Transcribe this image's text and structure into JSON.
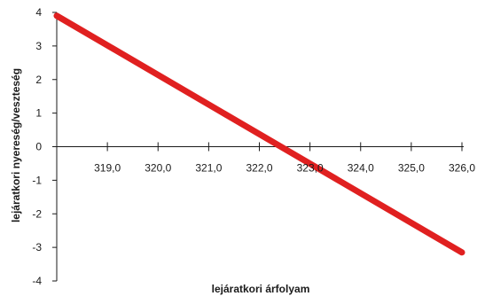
{
  "chart_data": {
    "type": "line",
    "title": "",
    "xlabel": "lejáratkori árfolyam",
    "ylabel": "lejáratkori nyereség/veszteség",
    "xlim": [
      318.0,
      326.0
    ],
    "ylim": [
      -4,
      4
    ],
    "x_ticks": [
      319,
      320,
      321,
      322,
      323,
      324,
      325,
      326
    ],
    "x_tick_labels": [
      "319,0",
      "320,0",
      "321,0",
      "322,0",
      "323,0",
      "324,0",
      "325,0",
      "326,0"
    ],
    "y_ticks": [
      4,
      3,
      2,
      1,
      0,
      -1,
      -2,
      -3,
      -4
    ],
    "y_tick_labels": [
      "4",
      "3",
      "2",
      "1",
      "0",
      "-1",
      "-2",
      "-3",
      "-4"
    ],
    "grid": false,
    "legend": "none",
    "series": [
      {
        "color": "#e02020",
        "x": [
          318.0,
          326.0
        ],
        "y": [
          3.9,
          -3.15
        ]
      }
    ]
  }
}
